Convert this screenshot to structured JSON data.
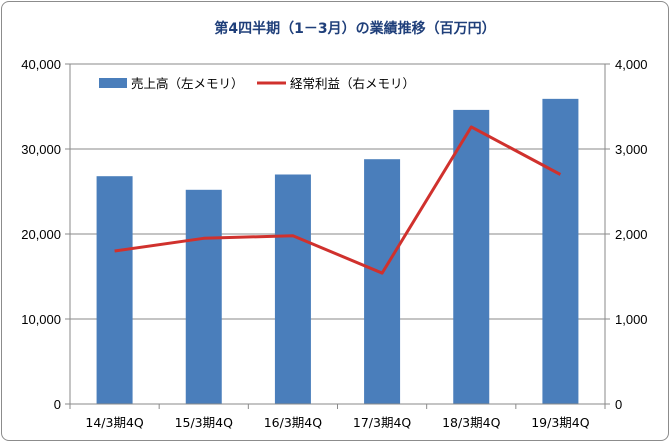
{
  "chart_data": {
    "type": "bar+line",
    "title": "第4四半期（1－3月）の業績推移（百万円）",
    "categories": [
      "14/3期4Q",
      "15/3期4Q",
      "16/3期4Q",
      "17/3期4Q",
      "18/3期4Q",
      "19/3期4Q"
    ],
    "series": [
      {
        "name": "売上高（左メモリ）",
        "type": "bar",
        "axis": "left",
        "color": "#4a7ebb",
        "values": [
          26800,
          25200,
          27000,
          28800,
          34600,
          35900
        ]
      },
      {
        "name": "経常利益（右メモリ）",
        "type": "line",
        "axis": "right",
        "color": "#d0312d",
        "values": [
          1800,
          1950,
          1980,
          1540,
          3260,
          2700
        ]
      }
    ],
    "left_axis": {
      "ylim": [
        0,
        40000
      ],
      "ticks": [
        0,
        10000,
        20000,
        30000,
        40000
      ],
      "tick_labels": [
        "0",
        "10,000",
        "20,000",
        "30,000",
        "40,000"
      ]
    },
    "right_axis": {
      "ylim": [
        0,
        4000
      ],
      "ticks": [
        0,
        1000,
        2000,
        3000,
        4000
      ],
      "tick_labels": [
        "0",
        "1,000",
        "2,000",
        "3,000",
        "4,000"
      ]
    },
    "grid": true,
    "legend": "top-left"
  }
}
